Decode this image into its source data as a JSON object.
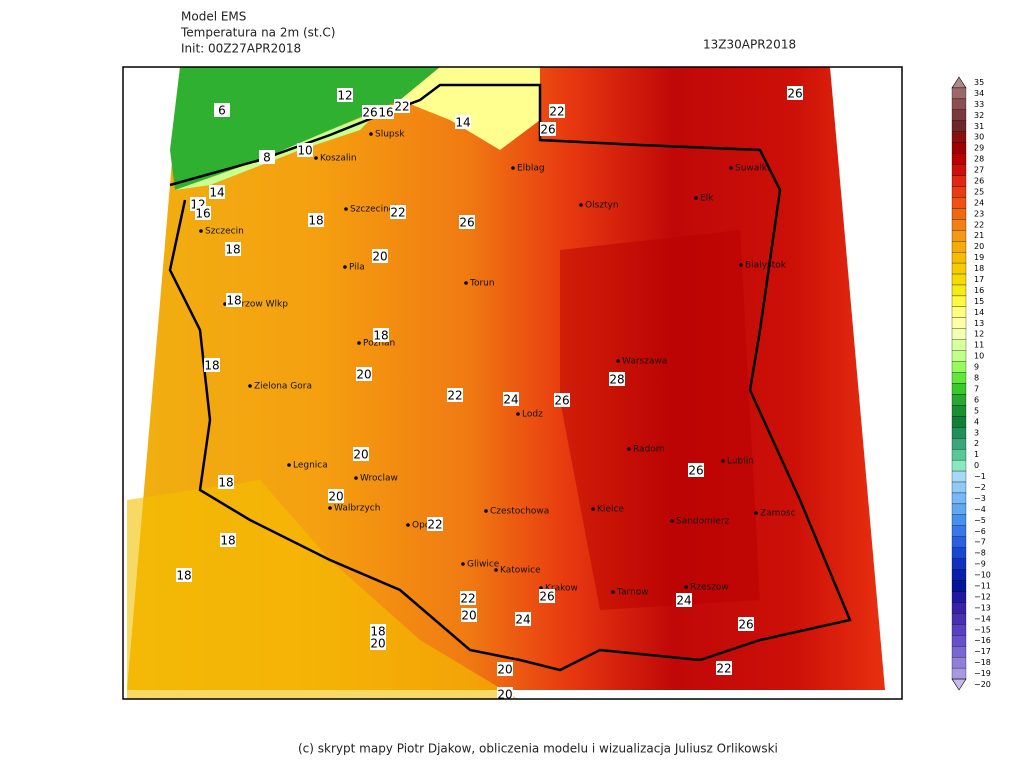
{
  "header": {
    "model": "Model EMS",
    "field": "Temperatura na 2m (st.C)",
    "init": "Init: 00Z27APR2018",
    "valid": "13Z30APR2018"
  },
  "footer": "(c) skrypt mapy Piotr Djakow, obliczenia modelu i wizualizacja Juliusz Orlikowski",
  "cities": [
    "Slupsk",
    "Koszalin",
    "Elblag",
    "Olsztyn",
    "Suwalki",
    "Elk",
    "Szczecinek",
    "Szczecin",
    "Pila",
    "Torun",
    "Bialystok",
    "Gorzow Wlkp",
    "Poznan",
    "Warszawa",
    "Zielona Gora",
    "Lodz",
    "Radom",
    "Legnica",
    "Wroclaw",
    "Lublin",
    "Walbrzych",
    "Opole",
    "Czestochowa",
    "Kielce",
    "Sandomierz",
    "Zamosc",
    "Gliwice",
    "Katowice",
    "Krakow",
    "Tarnow",
    "Rzeszow"
  ],
  "contour_labels": [
    6,
    12,
    26,
    16,
    22,
    22,
    26,
    26,
    14,
    8,
    10,
    14,
    12,
    16,
    18,
    22,
    26,
    18,
    20,
    18,
    18,
    18,
    20,
    22,
    24,
    26,
    28,
    26,
    20,
    18,
    20,
    22,
    18,
    18,
    22,
    26,
    24,
    20,
    24,
    26,
    18,
    20,
    20,
    22,
    20
  ],
  "legend": {
    "labels": [
      "35",
      "34",
      "33",
      "32",
      "31",
      "30",
      "29",
      "28",
      "27",
      "26",
      "25",
      "24",
      "23",
      "22",
      "21",
      "20",
      "19",
      "18",
      "17",
      "16",
      "15",
      "14",
      "13",
      "12",
      "11",
      "10",
      "9",
      "8",
      "7",
      "6",
      "5",
      "4",
      "3",
      "2",
      "1",
      "0",
      "−1",
      "−2",
      "−3",
      "−4",
      "−5",
      "−6",
      "−7",
      "−8",
      "−9",
      "−10",
      "−11",
      "−12",
      "−13",
      "−14",
      "−15",
      "−16",
      "−17",
      "−18",
      "−19",
      "−20"
    ],
    "colors": [
      "#b08888",
      "#9a6a6a",
      "#8a5050",
      "#7a3a3a",
      "#6e2828",
      "#8a1010",
      "#a00000",
      "#bb0000",
      "#d01008",
      "#e02810",
      "#ea3c10",
      "#f05010",
      "#f06812",
      "#f28014",
      "#f59812",
      "#f5ac08",
      "#f5bc00",
      "#f5cc00",
      "#f5dc00",
      "#f5ec10",
      "#fff840",
      "#ffff80",
      "#ffffa8",
      "#f0ffb0",
      "#d8ffa0",
      "#c0ff88",
      "#98f860",
      "#60e838",
      "#38c828",
      "#28a830",
      "#189030",
      "#108038",
      "#209058",
      "#38a878",
      "#58c898",
      "#88e8c0",
      "#a8d8f8",
      "#90c8f8",
      "#78b8f8",
      "#60a8f0",
      "#4890f0",
      "#3878e8",
      "#2860e0",
      "#1848d0",
      "#1030c0",
      "#0820a8",
      "#001898",
      "#2018a0",
      "#3820a8",
      "#4830b0",
      "#5840c0",
      "#6850c8",
      "#7868d0",
      "#9080d8",
      "#a898e0",
      "#c8b8f0"
    ]
  }
}
